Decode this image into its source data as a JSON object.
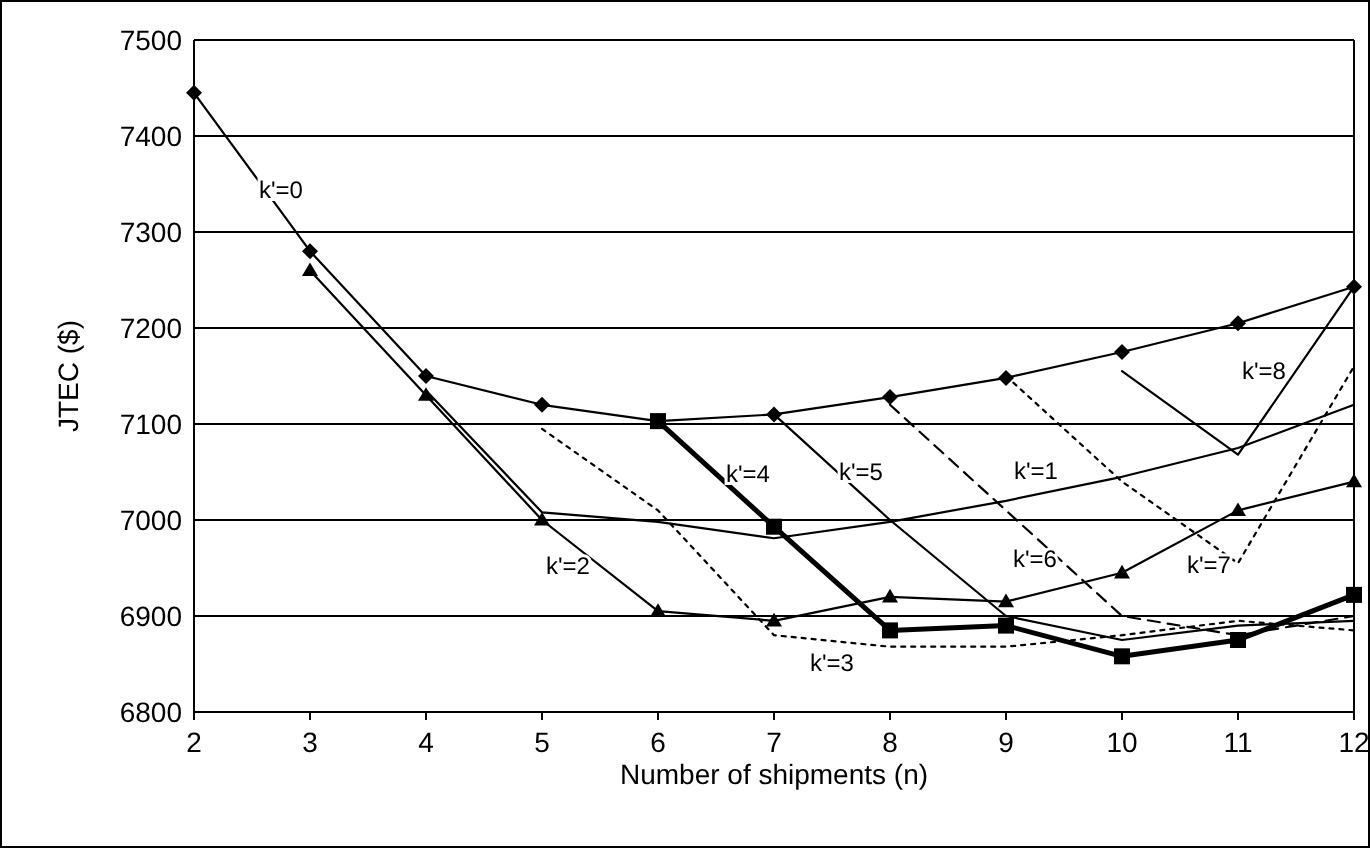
{
  "chart_data": {
    "type": "line",
    "xlabel": "Number of shipments (n)",
    "ylabel": "JTEC ($)",
    "xlim": [
      2,
      12
    ],
    "xticks": [
      2,
      3,
      4,
      5,
      6,
      7,
      8,
      9,
      10,
      11,
      12
    ],
    "ylim": [
      6800,
      7500
    ],
    "yticks": [
      6800,
      6900,
      7000,
      7100,
      7200,
      7300,
      7400,
      7500
    ],
    "grid": "y",
    "series": [
      {
        "name": "k'=0",
        "color": "#000000",
        "marker": "diamond",
        "line_style": "solid",
        "x": [
          2,
          3,
          4,
          5,
          6,
          7,
          8,
          9,
          10,
          11,
          12
        ],
        "values": [
          7445,
          7280,
          7150,
          7120,
          7103,
          7110,
          7128,
          7148,
          7175,
          7205,
          7243
        ]
      },
      {
        "name": "k'=1",
        "color": "#000000",
        "marker": "none",
        "line_style": "solid",
        "x": [
          4,
          5,
          6,
          7,
          8,
          9,
          10,
          11,
          12
        ],
        "values": [
          7135,
          7008,
          6998,
          6981,
          6998,
          7020,
          7045,
          7075,
          7120
        ]
      },
      {
        "name": "k'=2",
        "color": "#000000",
        "marker": "triangle",
        "line_style": "solid",
        "x": [
          3,
          4,
          5,
          6,
          7,
          8,
          9,
          10,
          11,
          12
        ],
        "values": [
          7260,
          7130,
          7000,
          6905,
          6895,
          6920,
          6915,
          6945,
          7010,
          7040
        ]
      },
      {
        "name": "k'=3",
        "color": "#000000",
        "marker": "none",
        "line_style": "dotted",
        "x": [
          5,
          6,
          7,
          8,
          9,
          10,
          11,
          12
        ],
        "values": [
          7095,
          7010,
          6880,
          6868,
          6868,
          6880,
          6895,
          6885
        ]
      },
      {
        "name": "k'=4",
        "color": "#000000",
        "marker": "square",
        "line_style": "solid",
        "x": [
          6,
          7,
          8,
          9,
          10,
          11,
          12
        ],
        "values": [
          7103,
          6993,
          6885,
          6890,
          6858,
          6875,
          6922
        ]
      },
      {
        "name": "k'=5",
        "color": "#000000",
        "marker": "none",
        "line_style": "solid",
        "x": [
          7,
          8,
          9,
          10,
          11,
          12
        ],
        "values": [
          7110,
          7000,
          6900,
          6875,
          6890,
          6895
        ]
      },
      {
        "name": "k'=6",
        "color": "#000000",
        "marker": "none",
        "line_style": "dashed",
        "x": [
          8,
          9,
          10,
          11,
          12
        ],
        "values": [
          7120,
          7010,
          6900,
          6880,
          6900
        ]
      },
      {
        "name": "k'=7",
        "color": "#000000",
        "marker": "none",
        "line_style": "dotted",
        "x": [
          9,
          10,
          11,
          12
        ],
        "values": [
          7150,
          7040,
          6955,
          7160
        ]
      },
      {
        "name": "k'=8",
        "color": "#000000",
        "marker": "none",
        "line_style": "solid",
        "x": [
          10,
          11,
          12
        ],
        "values": [
          7155,
          7068,
          7243
        ]
      }
    ]
  }
}
